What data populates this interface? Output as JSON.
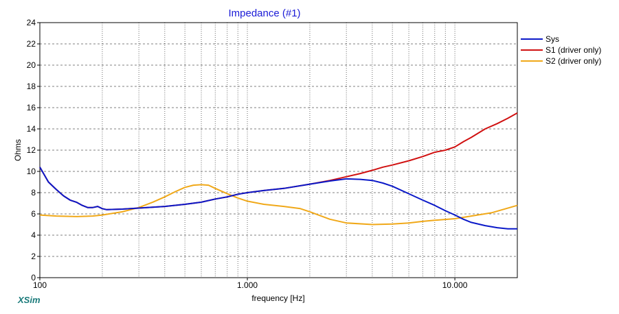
{
  "chart_data": {
    "type": "line",
    "title": "Impedance (#1)",
    "xlabel": "frequency [Hz]",
    "ylabel": "Ohms",
    "x_scale": "log",
    "xlim": [
      100,
      20000
    ],
    "ylim": [
      0,
      24
    ],
    "y_ticks": [
      "0",
      "2",
      "4",
      "6",
      "8",
      "10",
      "12",
      "14",
      "16",
      "18",
      "20",
      "22",
      "24"
    ],
    "x_ticks": [
      {
        "value": 100,
        "label": "100"
      },
      {
        "value": 1000,
        "label": "1.000"
      },
      {
        "value": 10000,
        "label": "10.000"
      }
    ],
    "grid": true,
    "legend_position": "top-right",
    "series": [
      {
        "name": "Sys",
        "color": "#0a18c8",
        "x": [
          100,
          110,
          120,
          130,
          140,
          150,
          160,
          170,
          180,
          190,
          200,
          210,
          250,
          300,
          400,
          500,
          600,
          700,
          800,
          900,
          1000,
          1200,
          1500,
          2000,
          2500,
          3000,
          3500,
          4000,
          4500,
          5000,
          6000,
          7000,
          8000,
          9000,
          10000,
          11000,
          12000,
          14000,
          16000,
          18000,
          20000
        ],
        "y": [
          10.4,
          9.0,
          8.3,
          7.7,
          7.3,
          7.1,
          6.8,
          6.6,
          6.6,
          6.7,
          6.5,
          6.4,
          6.45,
          6.55,
          6.7,
          6.9,
          7.1,
          7.4,
          7.6,
          7.85,
          8.0,
          8.2,
          8.4,
          8.8,
          9.1,
          9.3,
          9.25,
          9.15,
          8.9,
          8.6,
          7.9,
          7.3,
          6.8,
          6.3,
          5.9,
          5.5,
          5.2,
          4.9,
          4.7,
          4.6,
          4.6
        ]
      },
      {
        "name": "S1 (driver only)",
        "color": "#d01010",
        "x": [
          100,
          110,
          120,
          130,
          140,
          150,
          160,
          170,
          180,
          190,
          200,
          210,
          250,
          300,
          400,
          500,
          600,
          700,
          800,
          900,
          1000,
          1200,
          1500,
          2000,
          2500,
          3000,
          3500,
          4000,
          4500,
          5000,
          6000,
          7000,
          8000,
          9000,
          10000,
          11000,
          12000,
          14000,
          16000,
          18000,
          20000
        ],
        "y": [
          10.4,
          9.0,
          8.3,
          7.7,
          7.3,
          7.1,
          6.8,
          6.6,
          6.6,
          6.7,
          6.5,
          6.4,
          6.45,
          6.55,
          6.7,
          6.9,
          7.1,
          7.4,
          7.6,
          7.85,
          8.0,
          8.2,
          8.4,
          8.8,
          9.15,
          9.5,
          9.8,
          10.1,
          10.4,
          10.6,
          11.0,
          11.4,
          11.8,
          12.0,
          12.3,
          12.8,
          13.2,
          14.0,
          14.5,
          15.0,
          15.5
        ]
      },
      {
        "name": "S2 (driver only)",
        "color": "#f0a818",
        "x": [
          100,
          120,
          150,
          180,
          200,
          250,
          300,
          350,
          400,
          450,
          500,
          550,
          600,
          650,
          700,
          800,
          900,
          1000,
          1200,
          1500,
          1800,
          2000,
          2500,
          3000,
          4000,
          5000,
          6000,
          7000,
          8000,
          10000,
          12000,
          15000,
          20000
        ],
        "y": [
          5.9,
          5.8,
          5.75,
          5.8,
          5.9,
          6.2,
          6.6,
          7.1,
          7.6,
          8.1,
          8.5,
          8.7,
          8.75,
          8.7,
          8.4,
          7.9,
          7.5,
          7.2,
          6.9,
          6.7,
          6.5,
          6.2,
          5.5,
          5.15,
          5.0,
          5.05,
          5.15,
          5.3,
          5.4,
          5.55,
          5.8,
          6.1,
          6.8
        ]
      }
    ]
  },
  "branding": {
    "logo_text": "XSim"
  }
}
